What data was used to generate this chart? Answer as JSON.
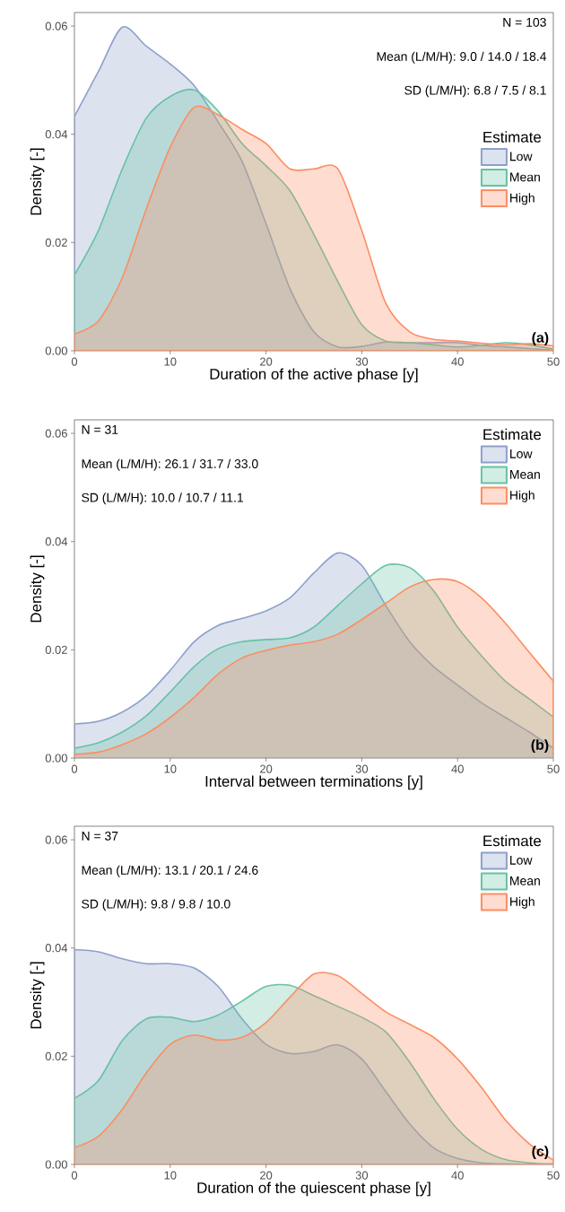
{
  "chart_data": [
    {
      "type": "area",
      "xlabel": "Duration of the active phase [y]",
      "ylabel": "Density [-]",
      "legend_title": "Estimate",
      "legend": "right",
      "annotations": [
        "N = 103",
        "Mean (L/M/H): 9.0 / 14.0 / 18.4",
        "SD (L/M/H): 6.8 / 7.5 / 8.1",
        "(a)"
      ],
      "x": [
        0,
        2.5,
        5,
        7.5,
        10,
        12.5,
        15,
        17.5,
        20,
        22.5,
        25,
        27.5,
        30,
        32.5,
        35,
        37.5,
        40,
        42.5,
        45,
        47.5,
        50
      ],
      "xlim": [
        0,
        50
      ],
      "xticks": [
        0,
        10,
        20,
        30,
        40,
        50
      ],
      "ylim": [
        0,
        0.0625
      ],
      "yticks": [
        {
          "value": 0,
          "label": "0.00"
        },
        {
          "value": 0.02,
          "label": "0.02"
        },
        {
          "value": 0.04,
          "label": "0.04"
        },
        {
          "value": 0.06,
          "label": "0.06"
        }
      ],
      "series": [
        {
          "name": "Low",
          "color": "#8da0cb",
          "values": [
            0.0433,
            0.0516,
            0.0598,
            0.0563,
            0.053,
            0.049,
            0.0423,
            0.035,
            0.0235,
            0.0115,
            0.0035,
            0.0007,
            0.0008,
            0.0016,
            0.0015,
            0.0015,
            0.0015,
            0.001,
            0.0007,
            0.0004,
            0.0001
          ]
        },
        {
          "name": "Mean",
          "color": "#66c2a5",
          "values": [
            0.014,
            0.0222,
            0.0336,
            0.043,
            0.047,
            0.0482,
            0.0443,
            0.0383,
            0.0342,
            0.0296,
            0.0215,
            0.0128,
            0.0048,
            0.0018,
            0.0015,
            0.0011,
            0.0007,
            0.001,
            0.0015,
            0.0011,
            0.0003
          ]
        },
        {
          "name": "High",
          "color": "#fc8d62",
          "values": [
            0.0031,
            0.0055,
            0.0135,
            0.0262,
            0.0376,
            0.045,
            0.0436,
            0.0409,
            0.0383,
            0.0336,
            0.0336,
            0.0336,
            0.0222,
            0.0088,
            0.0035,
            0.0021,
            0.0018,
            0.0014,
            0.0011,
            0.0013,
            0.0009
          ]
        }
      ]
    },
    {
      "type": "area",
      "xlabel": "Interval between terminations [y]",
      "ylabel": "Density [-]",
      "legend_title": "Estimate",
      "legend": "top right",
      "annotations": [
        "N = 31",
        "Mean (L/M/H): 26.1 / 31.7 / 33.0",
        "SD (L/M/H): 10.0 / 10.7 / 11.1",
        "(b)"
      ],
      "x": [
        0,
        2.5,
        5,
        7.5,
        10,
        12.5,
        15,
        17.5,
        20,
        22.5,
        25,
        27.5,
        30,
        32.5,
        35,
        37.5,
        40,
        42.5,
        45,
        47.5,
        50
      ],
      "xlim": [
        0,
        50
      ],
      "xticks": [
        0,
        10,
        20,
        30,
        40,
        50
      ],
      "ylim": [
        0,
        0.0625
      ],
      "yticks": [
        {
          "value": 0,
          "label": "0.00"
        },
        {
          "value": 0.02,
          "label": "0.02"
        },
        {
          "value": 0.04,
          "label": "0.04"
        },
        {
          "value": 0.06,
          "label": "0.06"
        }
      ],
      "series": [
        {
          "name": "Low",
          "color": "#8da0cb",
          "values": [
            0.0063,
            0.0068,
            0.0085,
            0.0115,
            0.0162,
            0.0215,
            0.0245,
            0.0258,
            0.0272,
            0.0296,
            0.0342,
            0.0379,
            0.0356,
            0.0282,
            0.0215,
            0.0169,
            0.0135,
            0.0102,
            0.0075,
            0.0048,
            0.0018
          ]
        },
        {
          "name": "Mean",
          "color": "#66c2a5",
          "values": [
            0.0018,
            0.0028,
            0.0048,
            0.0078,
            0.0122,
            0.0169,
            0.0202,
            0.0215,
            0.0219,
            0.0222,
            0.0242,
            0.0282,
            0.0322,
            0.0356,
            0.0352,
            0.0309,
            0.0242,
            0.0189,
            0.0142,
            0.0109,
            0.0076
          ]
        },
        {
          "name": "High",
          "color": "#fc8d62",
          "values": [
            0.0007,
            0.0011,
            0.0025,
            0.0045,
            0.0075,
            0.0112,
            0.0155,
            0.0185,
            0.0199,
            0.0209,
            0.0215,
            0.0229,
            0.0256,
            0.0286,
            0.0316,
            0.033,
            0.0326,
            0.0296,
            0.0249,
            0.0195,
            0.0142
          ]
        }
      ]
    },
    {
      "type": "area",
      "xlabel": "Duration of the quiescent phase [y]",
      "ylabel": "Density [-]",
      "legend_title": "Estimate",
      "legend": "top right",
      "annotations": [
        "N = 37",
        "Mean (L/M/H): 13.1 / 20.1 / 24.6",
        "SD (L/M/H): 9.8 / 9.8 / 10.0",
        "(c)"
      ],
      "x": [
        0,
        2.5,
        5,
        7.5,
        10,
        12.5,
        15,
        17.5,
        20,
        22.5,
        25,
        27.5,
        30,
        32.5,
        35,
        37.5,
        40,
        42.5,
        45,
        47.5,
        50
      ],
      "xlim": [
        0,
        50
      ],
      "xticks": [
        0,
        10,
        20,
        30,
        40,
        50
      ],
      "ylim": [
        0,
        0.0625
      ],
      "yticks": [
        {
          "value": 0,
          "label": "0.00"
        },
        {
          "value": 0.02,
          "label": "0.02"
        },
        {
          "value": 0.04,
          "label": "0.04"
        },
        {
          "value": 0.06,
          "label": "0.06"
        }
      ],
      "series": [
        {
          "name": "Low",
          "color": "#8da0cb",
          "values": [
            0.0397,
            0.0393,
            0.038,
            0.0371,
            0.0371,
            0.0363,
            0.0329,
            0.0269,
            0.0222,
            0.0205,
            0.0209,
            0.0221,
            0.0195,
            0.0135,
            0.0075,
            0.0031,
            0.0011,
            0.0003,
            0.0001,
            0.0,
            0.0
          ]
        },
        {
          "name": "Mean",
          "color": "#66c2a5",
          "values": [
            0.0122,
            0.0155,
            0.0229,
            0.0269,
            0.0272,
            0.0264,
            0.0276,
            0.0302,
            0.0329,
            0.0331,
            0.0312,
            0.0292,
            0.0272,
            0.0245,
            0.0189,
            0.0122,
            0.0065,
            0.0028,
            0.0009,
            0.0003,
            0.0001
          ]
        },
        {
          "name": "High",
          "color": "#fc8d62",
          "values": [
            0.0031,
            0.0052,
            0.0102,
            0.0169,
            0.0222,
            0.0239,
            0.023,
            0.0235,
            0.0262,
            0.0309,
            0.0352,
            0.0349,
            0.0316,
            0.0282,
            0.0259,
            0.0235,
            0.0195,
            0.0142,
            0.0082,
            0.0038,
            0.0008
          ]
        }
      ]
    }
  ]
}
